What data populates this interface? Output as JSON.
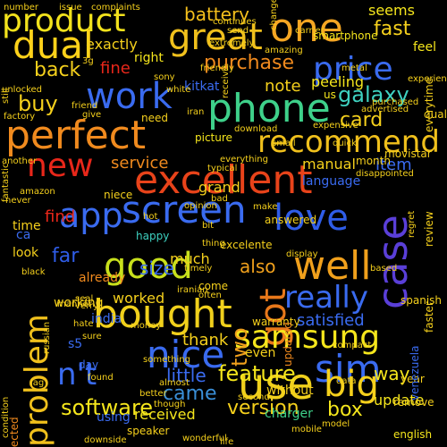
{
  "word_cloud": {
    "background": "#000000",
    "words": [
      {
        "text": "product",
        "color": "#f2e21c"
      },
      {
        "text": "great",
        "color": "#f0c01c"
      },
      {
        "text": "one",
        "color": "#f5a623"
      },
      {
        "text": "dual",
        "color": "#ffd21a"
      },
      {
        "text": "work",
        "color": "#3a6bf0"
      },
      {
        "text": "phone",
        "color": "#3ed18a"
      },
      {
        "text": "price",
        "color": "#3a6bf0"
      },
      {
        "text": "perfect",
        "color": "#f08a1e"
      },
      {
        "text": "recommend",
        "color": "#f0c01c"
      },
      {
        "text": "new",
        "color": "#e8271a"
      },
      {
        "text": "excellent",
        "color": "#e8431a"
      },
      {
        "text": "app",
        "color": "#3a6bf0"
      },
      {
        "text": "screen",
        "color": "#3a6bf0"
      },
      {
        "text": "love",
        "color": "#2f5de8"
      },
      {
        "text": "case",
        "color": "#5a3fd8"
      },
      {
        "text": "good",
        "color": "#c8e01c"
      },
      {
        "text": "well",
        "color": "#f0a01c"
      },
      {
        "text": "got",
        "color": "#e8781a"
      },
      {
        "text": "really",
        "color": "#3a6bf0"
      },
      {
        "text": "bought",
        "color": "#f0d01c"
      },
      {
        "text": "samsung",
        "color": "#f5e61c"
      },
      {
        "text": "problem",
        "color": "#f0c01c"
      },
      {
        "text": "nice",
        "color": "#3a6bf0"
      },
      {
        "text": "sim",
        "color": "#3a6bf0"
      },
      {
        "text": "n't",
        "color": "#3a6bf0"
      },
      {
        "text": "use",
        "color": "#f0d01c"
      },
      {
        "text": "big",
        "color": "#f5d01c"
      },
      {
        "text": "feature",
        "color": "#f5e61c"
      },
      {
        "text": "software",
        "color": "#f5e61c"
      },
      {
        "text": "came",
        "color": "#3a8fd8"
      },
      {
        "text": "version",
        "color": "#f5d01c"
      },
      {
        "text": "box",
        "color": "#f5e61c"
      },
      {
        "text": "battery",
        "color": "#f5c01c"
      },
      {
        "text": "fast",
        "color": "#f5d01c"
      },
      {
        "text": "purchase",
        "color": "#f08a1e"
      },
      {
        "text": "galaxy",
        "color": "#3ed1c0"
      },
      {
        "text": "buy",
        "color": "#f5d01c"
      },
      {
        "text": "back",
        "color": "#f5d01c"
      },
      {
        "text": "card",
        "color": "#f5d01c"
      },
      {
        "text": "item",
        "color": "#3a6bf0"
      },
      {
        "text": "way",
        "color": "#f5e61c"
      },
      {
        "text": "service",
        "color": "#f08a1e"
      },
      {
        "text": "find",
        "color": "#e8271a"
      },
      {
        "text": "two",
        "color": "#f0a01c"
      },
      {
        "text": "size",
        "color": "#3a6bf0"
      },
      {
        "text": "also",
        "color": "#f0a01c"
      },
      {
        "text": "far",
        "color": "#2f5de8"
      },
      {
        "text": "little",
        "color": "#3a6bf0"
      },
      {
        "text": "thank",
        "color": "#f5d01c"
      },
      {
        "text": "satisfied",
        "color": "#3a6bf0"
      },
      {
        "text": "update",
        "color": "#f5e61c"
      },
      {
        "text": "fine",
        "color": "#e8271a"
      },
      {
        "text": "note",
        "color": "#f5d01c"
      },
      {
        "text": "exactly",
        "color": "#f5d01c"
      },
      {
        "text": "manual",
        "color": "#f5d01c"
      },
      {
        "text": "language",
        "color": "#3a6bf0"
      },
      {
        "text": "grand",
        "color": "#f5d01c"
      },
      {
        "text": "worked",
        "color": "#f5d01c"
      },
      {
        "text": "much",
        "color": "#f5d01c"
      },
      {
        "text": "even",
        "color": "#f5d01c"
      },
      {
        "text": "without",
        "color": "#f5d01c"
      },
      {
        "text": "charger",
        "color": "#3ed18a"
      },
      {
        "text": "received",
        "color": "#f5e61c"
      },
      {
        "text": "using",
        "color": "#3a6bf0"
      },
      {
        "text": "seems",
        "color": "#f5e61c"
      },
      {
        "text": "feel",
        "color": "#f5e61c"
      },
      {
        "text": "right",
        "color": "#f5e61c"
      },
      {
        "text": "peeling",
        "color": "#f5e61c"
      },
      {
        "text": "kitkat",
        "color": "#3a6bf0"
      },
      {
        "text": "us",
        "color": "#f5e61c"
      },
      {
        "text": "need",
        "color": "#f5d01c"
      },
      {
        "text": "niece",
        "color": "#f5d01c"
      },
      {
        "text": "picture",
        "color": "#f5e61c"
      },
      {
        "text": "happy",
        "color": "#3ed1c0"
      },
      {
        "text": "time",
        "color": "#f5d01c"
      },
      {
        "text": "look",
        "color": "#f5d01c"
      },
      {
        "text": "ca",
        "color": "#3a6bf0"
      },
      {
        "text": "already",
        "color": "#f08a1e"
      },
      {
        "text": "working",
        "color": "#f5d01c"
      },
      {
        "text": "india",
        "color": "#3a6bf0"
      },
      {
        "text": "s5",
        "color": "#3a6bf0"
      },
      {
        "text": "day",
        "color": "#3a6bf0"
      },
      {
        "text": "smartphone",
        "color": "#f5e61c"
      },
      {
        "text": "month",
        "color": "#f5d01c"
      },
      {
        "text": "answered",
        "color": "#f5d01c"
      },
      {
        "text": "excelente",
        "color": "#f5d01c"
      },
      {
        "text": "come",
        "color": "#f5d01c"
      },
      {
        "text": "spanish",
        "color": "#f5d01c"
      },
      {
        "text": "year",
        "color": "#f5d01c"
      },
      {
        "text": "remove",
        "color": "#f5d01c"
      },
      {
        "text": "english",
        "color": "#f5e61c"
      },
      {
        "text": "expected",
        "color": "#f08a1e"
      },
      {
        "text": "warranty",
        "color": "#f5d01c"
      },
      {
        "text": "updated",
        "color": "#f08a1e"
      },
      {
        "text": "speaker",
        "color": "#f5d01c"
      },
      {
        "text": "venezuela",
        "color": "#3a6bf0"
      },
      {
        "text": "faster",
        "color": "#f5d01c"
      },
      {
        "text": "quality",
        "color": "#f5d01c"
      },
      {
        "text": "review",
        "color": "#f5d01c"
      },
      {
        "text": "everytime",
        "color": "#f5d01c"
      },
      {
        "text": "movistar",
        "color": "#f5d01c"
      },
      {
        "text": "complaints",
        "color": "#f5d01c"
      },
      {
        "text": "issue",
        "color": "#f5d01c"
      },
      {
        "text": "number",
        "color": "#f5d01c"
      },
      {
        "text": "metal",
        "color": "#f5d01c"
      },
      {
        "text": "amazing",
        "color": "#f5d01c"
      },
      {
        "text": "sony",
        "color": "#f5d01c"
      },
      {
        "text": "friend",
        "color": "#f5d01c"
      },
      {
        "text": "give",
        "color": "#f5d01c"
      },
      {
        "text": "factory",
        "color": "#f5d01c"
      },
      {
        "text": "unlocked",
        "color": "#f5d01c"
      },
      {
        "text": "still",
        "color": "#f5d01c"
      },
      {
        "text": "3g",
        "color": "#f5d01c"
      },
      {
        "text": "white",
        "color": "#f5d01c"
      },
      {
        "text": "typical",
        "color": "#f5d01c"
      },
      {
        "text": "bad",
        "color": "#f5d01c"
      },
      {
        "text": "hot",
        "color": "#f5d01c"
      },
      {
        "text": "bit",
        "color": "#f5d01c"
      },
      {
        "text": "thing",
        "color": "#f5d01c"
      },
      {
        "text": "timely",
        "color": "#f5d01c"
      },
      {
        "text": "often",
        "color": "#f5d01c"
      },
      {
        "text": "iranian",
        "color": "#f5d01c"
      },
      {
        "text": "seal",
        "color": "#f5d01c"
      },
      {
        "text": "sure",
        "color": "#f5d01c"
      },
      {
        "text": "hate",
        "color": "#f5d01c"
      },
      {
        "text": "verry",
        "color": "#f5d01c"
      },
      {
        "text": "manner",
        "color": "#f5d01c"
      },
      {
        "text": "russian",
        "color": "#f5d01c"
      },
      {
        "text": "black",
        "color": "#f5d01c"
      },
      {
        "text": "amazon",
        "color": "#f5d01c"
      },
      {
        "text": "lag",
        "color": "#f5d01c"
      },
      {
        "text": "found",
        "color": "#f5d01c"
      },
      {
        "text": "money",
        "color": "#f5d01c"
      },
      {
        "text": "something",
        "color": "#f5d01c"
      },
      {
        "text": "almost",
        "color": "#f5d01c"
      },
      {
        "text": "though",
        "color": "#f5d01c"
      },
      {
        "text": "wonderful",
        "color": "#f5d01c"
      },
      {
        "text": "life",
        "color": "#f5d01c"
      },
      {
        "text": "mobile",
        "color": "#f5d01c"
      },
      {
        "text": "model",
        "color": "#f5d01c"
      },
      {
        "text": "receive",
        "color": "#f5d01c"
      },
      {
        "text": "second",
        "color": "#f5d01c"
      },
      {
        "text": "extremely",
        "color": "#f5d01c"
      },
      {
        "text": "send",
        "color": "#f5d01c"
      },
      {
        "text": "continues",
        "color": "#f5d01c"
      },
      {
        "text": "friendly",
        "color": "#f5d01c"
      },
      {
        "text": "experience",
        "color": "#f5d01c"
      },
      {
        "text": "advertised",
        "color": "#f5d01c"
      },
      {
        "text": "purchased",
        "color": "#f5d01c"
      },
      {
        "text": "expensive",
        "color": "#f5d01c"
      },
      {
        "text": "quick",
        "color": "#f5d01c"
      },
      {
        "text": "small",
        "color": "#f5d01c"
      },
      {
        "text": "disappointed",
        "color": "#f5d01c"
      },
      {
        "text": "regret",
        "color": "#f5d01c"
      },
      {
        "text": "based",
        "color": "#f5d01c"
      },
      {
        "text": "compact",
        "color": "#f5d01c"
      },
      {
        "text": "data",
        "color": "#f5d01c"
      },
      {
        "text": "downside",
        "color": "#f5d01c"
      },
      {
        "text": "better",
        "color": "#f5d01c"
      },
      {
        "text": "another",
        "color": "#f5d01c"
      },
      {
        "text": "fantastic",
        "color": "#f5d01c"
      },
      {
        "text": "never",
        "color": "#f5d01c"
      },
      {
        "text": "opinion",
        "color": "#f5d01c"
      },
      {
        "text": "carrier",
        "color": "#f5d01c"
      },
      {
        "text": "download",
        "color": "#f5d01c"
      },
      {
        "text": "change",
        "color": "#f5d01c"
      },
      {
        "text": "condition",
        "color": "#f5d01c"
      },
      {
        "text": "iran",
        "color": "#f5d01c"
      },
      {
        "text": "everything",
        "color": "#f5d01c"
      },
      {
        "text": "make",
        "color": "#f5d01c"
      },
      {
        "text": "display",
        "color": "#f5d01c"
      }
    ]
  }
}
